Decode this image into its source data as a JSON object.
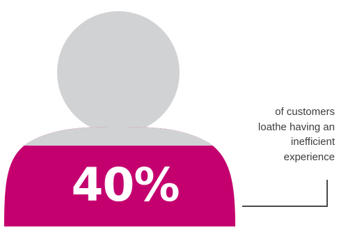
{
  "stat": {
    "value": "40%",
    "caption_lines": [
      "of customers",
      "loathe having an",
      "inefficient",
      "experience"
    ]
  },
  "colors": {
    "person_head": "#d1d2d4",
    "person_shoulders_top": "#d1d2d4",
    "person_body": "#c4006f",
    "connector_line": "#4a4a4a",
    "caption_text": "#3c3c3c",
    "value_text": "#ffffff"
  },
  "icons": {
    "figure": "person-silhouette-icon",
    "connector": "bracket-connector-line"
  }
}
